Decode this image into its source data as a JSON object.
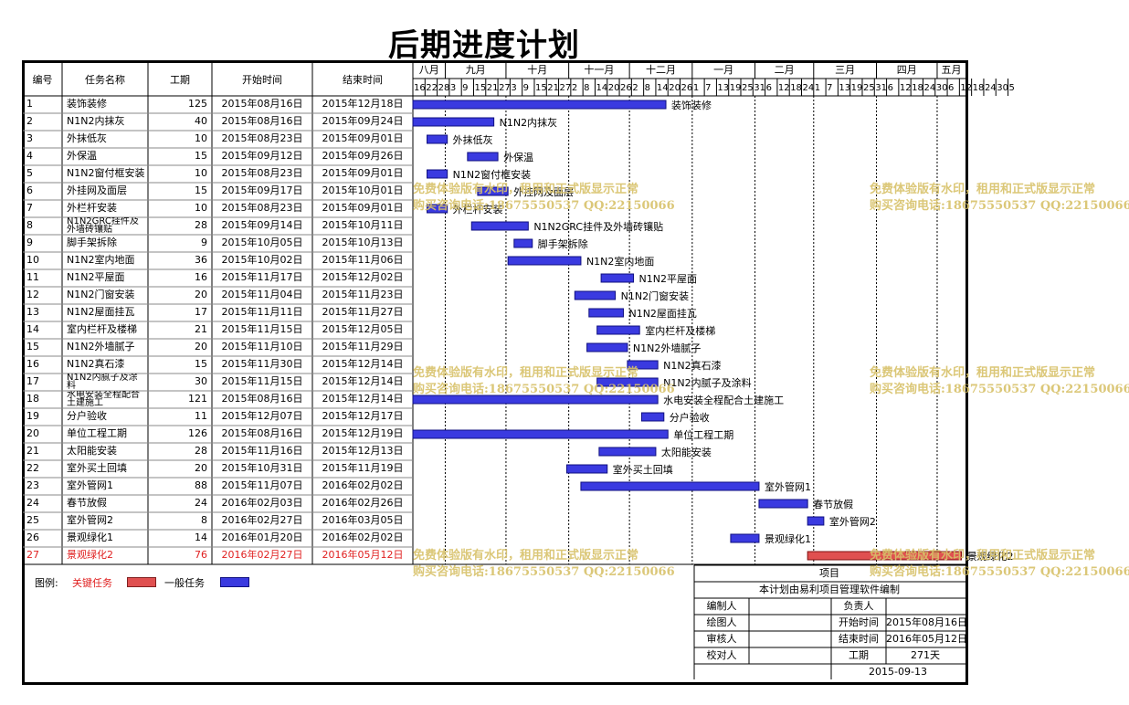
{
  "title": "后期进度计划",
  "table_headers": [
    "编号",
    "任务名称",
    "工期",
    "开始时间",
    "结束时间"
  ],
  "months": [
    "八月",
    "九月",
    "十月",
    "十一月",
    "十二月",
    "一月",
    "二月",
    "三月",
    "四月",
    "五月"
  ],
  "day_ticks": [
    "16",
    "22",
    "28",
    "3",
    "9",
    "15",
    "21",
    "27",
    "3",
    "9",
    "15",
    "21",
    "27",
    "2",
    "8",
    "14",
    "20",
    "26",
    "2",
    "8",
    "14",
    "20",
    "26",
    "1",
    "7",
    "13",
    "19",
    "25",
    "31",
    "6",
    "12",
    "18",
    "24",
    "1",
    "7",
    "13",
    "19",
    "25",
    "31",
    "6",
    "12",
    "18",
    "24",
    "30",
    "6",
    "12",
    "18",
    "24",
    "30",
    "5"
  ],
  "chart_data": {
    "type": "gantt",
    "title": "后期进度计划",
    "x_axis": {
      "start": "2015-08-16",
      "end": "2016-05-15",
      "unit": "day"
    },
    "legend": [
      {
        "label": "关键任务",
        "color": "#e05050"
      },
      {
        "label": "一般任务",
        "color": "#3a3ae0"
      }
    ],
    "tasks": [
      {
        "id": "1",
        "name": "装饰装修",
        "duration": 125,
        "start": "2015年08月16日",
        "end": "2015年12月18日",
        "s": "2015-08-16",
        "e": "2015-12-18",
        "critical": false,
        "label": "装饰装修"
      },
      {
        "id": "2",
        "name": "N1N2内抹灰",
        "duration": 40,
        "start": "2015年08月16日",
        "end": "2015年09月24日",
        "s": "2015-08-16",
        "e": "2015-09-24",
        "critical": false,
        "label": "N1N2内抹灰"
      },
      {
        "id": "3",
        "name": "外抹低灰",
        "duration": 10,
        "start": "2015年08月23日",
        "end": "2015年09月01日",
        "s": "2015-08-23",
        "e": "2015-09-01",
        "critical": false,
        "label": "外抹低灰"
      },
      {
        "id": "4",
        "name": "外保温",
        "duration": 15,
        "start": "2015年09月12日",
        "end": "2015年09月26日",
        "s": "2015-09-12",
        "e": "2015-09-26",
        "critical": false,
        "label": "外保温"
      },
      {
        "id": "5",
        "name": "N1N2窗付框安装",
        "duration": 10,
        "start": "2015年08月23日",
        "end": "2015年09月01日",
        "s": "2015-08-23",
        "e": "2015-09-01",
        "critical": false,
        "label": "N1N2窗付框安装"
      },
      {
        "id": "6",
        "name": "外挂网及面层",
        "duration": 15,
        "start": "2015年09月17日",
        "end": "2015年10月01日",
        "s": "2015-09-17",
        "e": "2015-10-01",
        "critical": false,
        "label": "外挂网及面层"
      },
      {
        "id": "7",
        "name": "外栏杆安装",
        "duration": 10,
        "start": "2015年08月23日",
        "end": "2015年09月01日",
        "s": "2015-08-23",
        "e": "2015-09-01",
        "critical": false,
        "label": "外栏杆安装"
      },
      {
        "id": "8",
        "name": "N1N2GRC挂件及外墙砖镶贴",
        "duration": 28,
        "start": "2015年09月14日",
        "end": "2015年10月11日",
        "s": "2015-09-14",
        "e": "2015-10-11",
        "critical": false,
        "label": "N1N2GRC挂件及外墙砖镶贴"
      },
      {
        "id": "9",
        "name": "脚手架拆除",
        "duration": 9,
        "start": "2015年10月05日",
        "end": "2015年10月13日",
        "s": "2015-10-05",
        "e": "2015-10-13",
        "critical": false,
        "label": "脚手架拆除"
      },
      {
        "id": "10",
        "name": "N1N2室内地面",
        "duration": 36,
        "start": "2015年10月02日",
        "end": "2015年11月06日",
        "s": "2015-10-02",
        "e": "2015-11-06",
        "critical": false,
        "label": "N1N2室内地面"
      },
      {
        "id": "11",
        "name": "N1N2平屋面",
        "duration": 16,
        "start": "2015年11月17日",
        "end": "2015年12月02日",
        "s": "2015-11-17",
        "e": "2015-12-02",
        "critical": false,
        "label": "N1N2平屋面"
      },
      {
        "id": "12",
        "name": "N1N2门窗安装",
        "duration": 20,
        "start": "2015年11月04日",
        "end": "2015年11月23日",
        "s": "2015-11-04",
        "e": "2015-11-23",
        "critical": false,
        "label": "N1N2门窗安装"
      },
      {
        "id": "13",
        "name": "N1N2屋面挂瓦",
        "duration": 17,
        "start": "2015年11月11日",
        "end": "2015年11月27日",
        "s": "2015-11-11",
        "e": "2015-11-27",
        "critical": false,
        "label": "N1N2屋面挂瓦"
      },
      {
        "id": "14",
        "name": "室内栏杆及楼梯",
        "duration": 21,
        "start": "2015年11月15日",
        "end": "2015年12月05日",
        "s": "2015-11-15",
        "e": "2015-12-05",
        "critical": false,
        "label": "室内栏杆及楼梯"
      },
      {
        "id": "15",
        "name": "N1N2外墙腻子",
        "duration": 20,
        "start": "2015年11月10日",
        "end": "2015年11月29日",
        "s": "2015-11-10",
        "e": "2015-11-29",
        "critical": false,
        "label": "N1N2外墙腻子"
      },
      {
        "id": "16",
        "name": "N1N2真石漆",
        "duration": 15,
        "start": "2015年11月30日",
        "end": "2015年12月14日",
        "s": "2015-11-30",
        "e": "2015-12-14",
        "critical": false,
        "label": "N1N2真石漆"
      },
      {
        "id": "17",
        "name": "N1N2内腻子及涂料",
        "duration": 30,
        "start": "2015年11月15日",
        "end": "2015年12月14日",
        "s": "2015-11-15",
        "e": "2015-12-14",
        "critical": false,
        "label": "N1N2内腻子及涂料"
      },
      {
        "id": "18",
        "name": "水电安装全程配合土建施工",
        "duration": 121,
        "start": "2015年08月16日",
        "end": "2015年12月14日",
        "s": "2015-08-16",
        "e": "2015-12-14",
        "critical": false,
        "label": "水电安装全程配合土建施工"
      },
      {
        "id": "19",
        "name": "分户验收",
        "duration": 11,
        "start": "2015年12月07日",
        "end": "2015年12月17日",
        "s": "2015-12-07",
        "e": "2015-12-17",
        "critical": false,
        "label": "分户验收"
      },
      {
        "id": "20",
        "name": "单位工程工期",
        "duration": 126,
        "start": "2015年08月16日",
        "end": "2015年12月19日",
        "s": "2015-08-16",
        "e": "2015-12-19",
        "critical": false,
        "label": "单位工程工期"
      },
      {
        "id": "21",
        "name": "太阳能安装",
        "duration": 28,
        "start": "2015年11月16日",
        "end": "2015年12月13日",
        "s": "2015-11-16",
        "e": "2015-12-13",
        "critical": false,
        "label": "太阳能安装"
      },
      {
        "id": "22",
        "name": "室外买土回填",
        "duration": 20,
        "start": "2015年10月31日",
        "end": "2015年11月19日",
        "s": "2015-10-31",
        "e": "2015-11-19",
        "critical": false,
        "label": "室外买土回填"
      },
      {
        "id": "23",
        "name": "室外管网1",
        "duration": 88,
        "start": "2015年11月07日",
        "end": "2016年02月02日",
        "s": "2015-11-07",
        "e": "2016-02-02",
        "critical": false,
        "label": "室外管网1"
      },
      {
        "id": "24",
        "name": "春节放假",
        "duration": 24,
        "start": "2016年02月03日",
        "end": "2016年02月26日",
        "s": "2016-02-03",
        "e": "2016-02-26",
        "critical": false,
        "label": "春节放假"
      },
      {
        "id": "25",
        "name": "室外管网2",
        "duration": 8,
        "start": "2016年02月27日",
        "end": "2016年03月05日",
        "s": "2016-02-27",
        "e": "2016-03-05",
        "critical": false,
        "label": "室外管网2"
      },
      {
        "id": "26",
        "name": "景观绿化1",
        "duration": 14,
        "start": "2016年01月20日",
        "end": "2016年02月02日",
        "s": "2016-01-20",
        "e": "2016-02-02",
        "critical": false,
        "label": "景观绿化1"
      },
      {
        "id": "27",
        "name": "景观绿化2",
        "duration": 76,
        "start": "2016年02月27日",
        "end": "2016年05月12日",
        "s": "2016-02-27",
        "e": "2016-05-12",
        "critical": true,
        "label": "景观绿化2"
      }
    ]
  },
  "legend_label": "图例:",
  "info": {
    "project_label": "项目",
    "made_by": "本计划由易利项目管理软件编制",
    "editor_label": "编制人",
    "owner_label": "负责人",
    "drawer_label": "绘图人",
    "start_label": "开始时间",
    "start_value": "2015年08月16日",
    "reviewer_label": "审核人",
    "end_label": "结束时间",
    "end_value": "2016年05月12日",
    "checker_label": "校对人",
    "duration_label": "工期",
    "duration_value": "271天",
    "date": "2015-09-13"
  },
  "watermark": {
    "line1": "免费体验版有水印，租用和正式版显示正常",
    "line2": "购买咨询电话:18675550537 QQ:22150066"
  }
}
